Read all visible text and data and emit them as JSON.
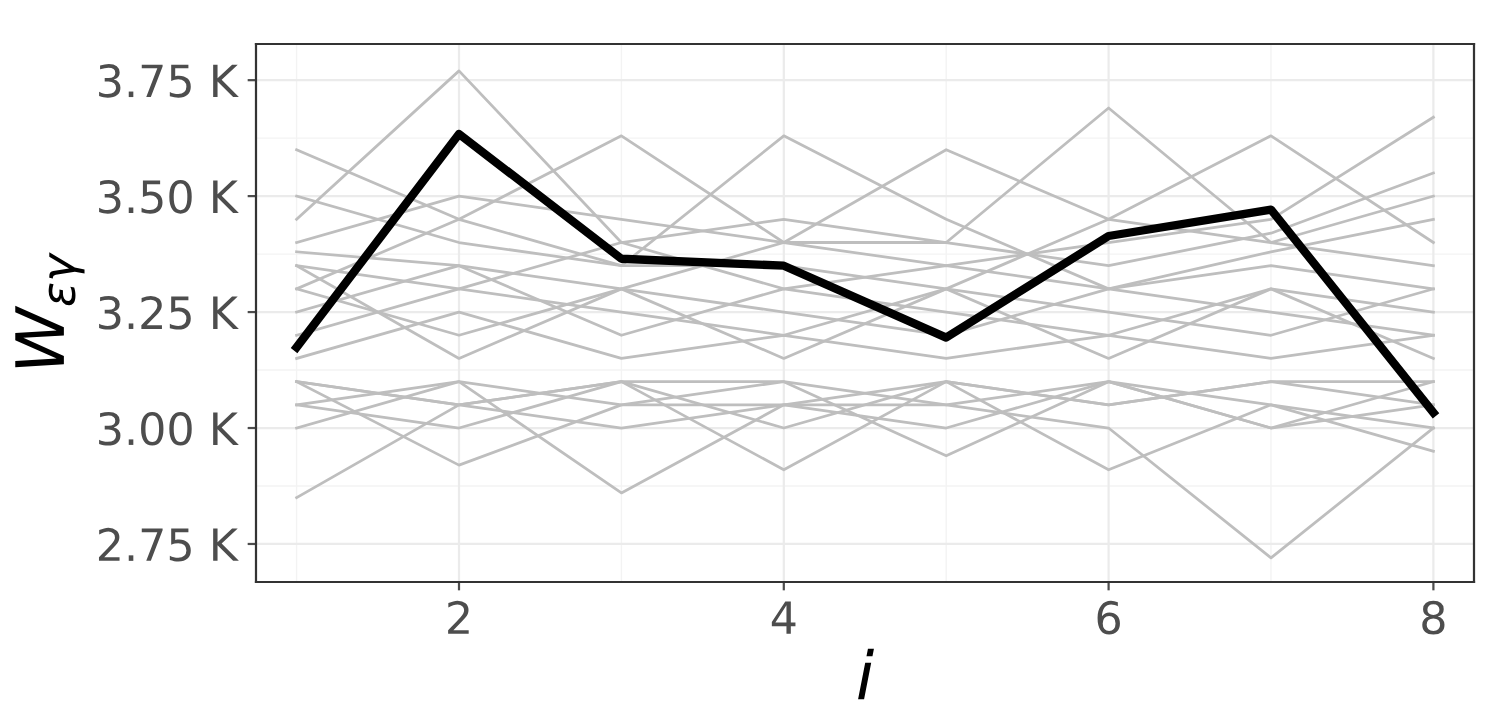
{
  "chart_data": {
    "type": "line",
    "xlabel": "i",
    "ylabel": "W$_{εγ}$",
    "x": [
      1,
      2,
      3,
      4,
      5,
      6,
      7,
      8
    ],
    "xlim": [
      0.75,
      8.25
    ],
    "ylim": [
      2.668,
      3.828
    ],
    "xticks": [
      2,
      4,
      6,
      8
    ],
    "yticks": [
      {
        "value": 2.75,
        "label": "2.75 K"
      },
      {
        "value": 3.0,
        "label": "3.00 K"
      },
      {
        "value": 3.25,
        "label": "3.25 K"
      },
      {
        "value": 3.5,
        "label": "3.50 K"
      },
      {
        "value": 3.75,
        "label": "3.75 K"
      }
    ],
    "grid": true,
    "legend": false,
    "marker": "none",
    "line_style": "solid",
    "series": [
      {
        "color": "#bebebe",
        "values": [
          3.45,
          3.77,
          3.4,
          3.3,
          3.35,
          3.3,
          3.35,
          3.3
        ]
      },
      {
        "color": "#bebebe",
        "values": [
          3.6,
          3.45,
          3.63,
          3.4,
          3.4,
          3.35,
          3.42,
          3.55
        ]
      },
      {
        "color": "#bebebe",
        "values": [
          3.5,
          3.4,
          3.35,
          3.63,
          3.45,
          3.3,
          3.38,
          3.45
        ]
      },
      {
        "color": "#bebebe",
        "values": [
          3.4,
          3.5,
          3.45,
          3.4,
          3.6,
          3.45,
          3.4,
          3.35
        ]
      },
      {
        "color": "#bebebe",
        "values": [
          3.35,
          3.3,
          3.4,
          3.45,
          3.4,
          3.69,
          3.4,
          3.5
        ]
      },
      {
        "color": "#bebebe",
        "values": [
          3.3,
          3.45,
          3.35,
          3.35,
          3.3,
          3.45,
          3.63,
          3.4
        ]
      },
      {
        "color": "#bebebe",
        "values": [
          3.38,
          3.35,
          3.3,
          3.4,
          3.35,
          3.4,
          3.45,
          3.67
        ]
      },
      {
        "color": "#bebebe",
        "values": [
          2.85,
          3.05,
          3.1,
          3.1,
          3.05,
          3.1,
          3.0,
          3.05
        ]
      },
      {
        "color": "#bebebe",
        "values": [
          3.1,
          2.92,
          3.05,
          3.05,
          3.1,
          3.05,
          3.1,
          3.1
        ]
      },
      {
        "color": "#bebebe",
        "values": [
          3.05,
          3.1,
          2.86,
          3.05,
          3.0,
          3.1,
          3.05,
          3.0
        ]
      },
      {
        "color": "#bebebe",
        "values": [
          3.1,
          3.05,
          3.1,
          2.91,
          3.1,
          3.05,
          3.1,
          3.05
        ]
      },
      {
        "color": "#bebebe",
        "values": [
          3.0,
          3.1,
          3.05,
          3.1,
          2.94,
          3.1,
          3.0,
          3.1
        ]
      },
      {
        "color": "#bebebe",
        "values": [
          3.05,
          3.0,
          3.1,
          3.0,
          3.1,
          2.91,
          3.05,
          2.95
        ]
      },
      {
        "color": "#bebebe",
        "values": [
          3.1,
          3.05,
          3.0,
          3.05,
          3.05,
          3.0,
          2.72,
          3.0
        ]
      },
      {
        "color": "#bebebe",
        "values": [
          3.2,
          3.3,
          3.25,
          3.2,
          3.3,
          3.25,
          3.2,
          3.3
        ]
      },
      {
        "color": "#bebebe",
        "values": [
          3.3,
          3.2,
          3.3,
          3.25,
          3.2,
          3.3,
          3.25,
          3.2
        ]
      },
      {
        "color": "#bebebe",
        "values": [
          3.25,
          3.35,
          3.2,
          3.3,
          3.25,
          3.2,
          3.3,
          3.25
        ]
      },
      {
        "color": "#bebebe",
        "values": [
          3.15,
          3.25,
          3.15,
          3.2,
          3.15,
          3.2,
          3.15,
          3.2
        ]
      },
      {
        "color": "#bebebe",
        "values": [
          3.35,
          3.15,
          3.3,
          3.15,
          3.3,
          3.15,
          3.3,
          3.15
        ]
      },
      {
        "color": "#000000",
        "values": [
          3.174,
          3.634,
          3.365,
          3.35,
          3.195,
          3.414,
          3.471,
          3.033
        ]
      }
    ]
  }
}
